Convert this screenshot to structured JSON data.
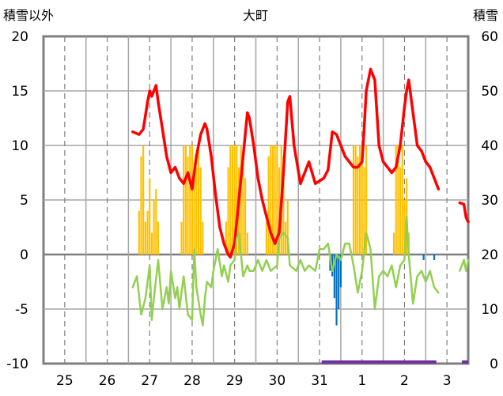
{
  "chart_data": {
    "type": "line",
    "title": "大町",
    "ylabel_left": "積雪以外",
    "ylabel_right": "積雪",
    "ylim_left": [
      -10,
      20
    ],
    "ylim_right": [
      0,
      60
    ],
    "yticks_left": [
      "20",
      "15",
      "10",
      "5",
      "0",
      "-5",
      "-10"
    ],
    "yticks_right": [
      "60",
      "50",
      "40",
      "30",
      "20",
      "10",
      "0"
    ],
    "x_tick_labels": [
      "25",
      "26",
      "27",
      "28",
      "29",
      "30",
      "31",
      "1",
      "2",
      "3"
    ],
    "x_range_days": [
      24.5,
      34.5
    ],
    "grid": true,
    "colors": {
      "snow_depth": "#ff0000",
      "temperature": "#92d050",
      "sunshine": "#ffc000",
      "precipitation": "#0070c0",
      "missing_bar": "#7030a0"
    },
    "series": [
      {
        "key": "snow_depth",
        "axis": "right",
        "style": "line",
        "x": [
          26.6,
          26.75,
          26.85,
          26.95,
          27.0,
          27.05,
          27.15,
          27.2,
          27.3,
          27.4,
          27.5,
          27.6,
          27.7,
          27.8,
          27.9,
          28.0,
          28.1,
          28.2,
          28.3,
          28.35,
          28.45,
          28.55,
          28.65,
          28.75,
          28.85,
          28.9,
          29.0,
          29.1,
          29.2,
          29.3,
          29.35,
          29.45,
          29.55,
          29.65,
          29.75,
          29.85,
          29.95,
          30.05,
          30.15,
          30.25,
          30.3,
          30.4,
          30.55,
          30.65,
          30.75,
          30.9,
          31.0,
          31.1,
          31.2,
          31.3,
          31.4,
          31.5,
          31.6,
          31.7,
          31.8,
          31.9,
          32.0,
          32.05,
          32.1,
          32.2,
          32.3,
          32.4,
          32.5,
          32.6,
          32.7,
          32.8,
          32.9,
          33.0,
          33.05,
          33.1,
          33.2,
          33.3,
          33.4,
          33.5,
          33.6,
          33.7,
          33.8
        ],
        "values": [
          42.5,
          42,
          43,
          48,
          50,
          49,
          51,
          48,
          43,
          38,
          35,
          36,
          34,
          33,
          35,
          32,
          38,
          42,
          44,
          43,
          38,
          31,
          25,
          22,
          20,
          19.5,
          22,
          30,
          38,
          46,
          45,
          40,
          34,
          30,
          27,
          24,
          22,
          24,
          35,
          48,
          49,
          40,
          33,
          35,
          37,
          33,
          33.5,
          34,
          35.5,
          42.5,
          42,
          40,
          38,
          37,
          36,
          36,
          37,
          43,
          50,
          54,
          52,
          40,
          37,
          36,
          35,
          36,
          40,
          47,
          50,
          52,
          46,
          40,
          39,
          37,
          36,
          34,
          32
        ]
      },
      {
        "key": "snow_depth_tail",
        "axis": "right",
        "style": "line",
        "x": [
          34.3,
          34.4,
          34.45,
          34.5
        ],
        "values": [
          29.5,
          29.2,
          26.8,
          26
        ]
      },
      {
        "key": "temperature",
        "axis": "left",
        "style": "line",
        "x": [
          26.6,
          26.7,
          26.8,
          26.9,
          27.0,
          27.05,
          27.1,
          27.2,
          27.3,
          27.4,
          27.45,
          27.5,
          27.6,
          27.65,
          27.7,
          27.8,
          27.9,
          28.0,
          28.05,
          28.1,
          28.2,
          28.25,
          28.3,
          28.35,
          28.45,
          28.5,
          28.6,
          28.7,
          28.75,
          28.85,
          28.9,
          29.0,
          29.05,
          29.1,
          29.2,
          29.3,
          29.35,
          29.45,
          29.55,
          29.65,
          29.75,
          29.85,
          30.0,
          30.05,
          30.15,
          30.25,
          30.3,
          30.45,
          30.55,
          30.65,
          30.75,
          30.9,
          31.0,
          31.1,
          31.2,
          31.3,
          31.4,
          31.5,
          31.6,
          31.7,
          31.8,
          31.9,
          32.0,
          32.1,
          32.2,
          32.3,
          32.4,
          32.5,
          32.6,
          32.7,
          32.8,
          32.9,
          33.0,
          33.05,
          33.1,
          33.2,
          33.3,
          33.4,
          33.5,
          33.6,
          33.7,
          33.8
        ],
        "values": [
          -3,
          -2,
          -5.5,
          -4,
          -1,
          -6,
          -4,
          -0.5,
          -5,
          -3,
          -4.5,
          -1.5,
          -4,
          -3,
          -5,
          -2,
          -5.5,
          -6,
          0.5,
          -3,
          -5.5,
          -6.5,
          -4,
          -2.5,
          -3,
          -1.5,
          0.5,
          -2,
          -1,
          -2.5,
          -1,
          -0.5,
          1.5,
          2,
          -2,
          -1,
          -1.5,
          -1.5,
          -0.5,
          -1.5,
          -0.5,
          -1.5,
          -1,
          1.5,
          2,
          1.5,
          -1,
          -1.5,
          -0.5,
          -1.5,
          -1,
          -1.5,
          0.5,
          0.5,
          1,
          -1.5,
          0,
          -0.5,
          1,
          1,
          -1,
          -3.5,
          -1.5,
          2,
          0.5,
          -5,
          -2,
          -1.5,
          -2,
          -1,
          -3,
          -1,
          -0.5,
          3.5,
          0,
          -4.5,
          -2,
          -1.5,
          -2.5,
          -1.5,
          -3,
          -3.5
        ]
      },
      {
        "key": "temperature_tail",
        "axis": "left",
        "style": "line",
        "x": [
          34.3,
          34.4,
          34.45,
          34.5
        ],
        "values": [
          -1.5,
          -0.5,
          -1.5,
          -0.5
        ]
      },
      {
        "key": "sunshine",
        "axis": "left",
        "style": "bars",
        "bar_width_days": 0.04,
        "x": [
          26.75,
          26.8,
          26.85,
          26.9,
          26.95,
          27.0,
          27.05,
          27.1,
          27.15,
          27.2,
          27.75,
          27.8,
          27.85,
          27.9,
          27.95,
          28.0,
          28.05,
          28.1,
          28.15,
          28.2,
          28.25,
          28.8,
          28.85,
          28.9,
          28.95,
          29.0,
          29.05,
          29.1,
          29.15,
          29.2,
          29.25,
          29.3,
          29.75,
          29.8,
          29.85,
          29.9,
          29.95,
          30.0,
          30.05,
          30.1,
          30.15,
          30.2,
          30.25,
          31.8,
          31.85,
          31.9,
          31.95,
          32.0,
          32.05,
          32.1,
          32.75,
          32.8,
          32.85,
          32.9,
          32.95,
          33.0,
          33.05,
          33.1
        ],
        "values": [
          4,
          9,
          10,
          3,
          4,
          7,
          2,
          5,
          6,
          3,
          3,
          10,
          10,
          9,
          10,
          10,
          7,
          8,
          10,
          8,
          3,
          3,
          8,
          10,
          10,
          10,
          10,
          8,
          10,
          9,
          7,
          2,
          3,
          9,
          10,
          10,
          10,
          10,
          8,
          10,
          9,
          3,
          5,
          10,
          10,
          9,
          10,
          10,
          8,
          10,
          2,
          10,
          10,
          8,
          10,
          5,
          7,
          2
        ]
      },
      {
        "key": "precipitation",
        "axis": "left",
        "style": "bars",
        "bar_width_days": 0.04,
        "x": [
          31.25,
          31.3,
          31.35,
          31.4,
          31.45,
          31.5,
          33.45,
          33.7
        ],
        "values": [
          -1.5,
          -2,
          -4,
          -6.5,
          -5,
          -3,
          -0.5,
          -0.5
        ]
      },
      {
        "key": "missing_bar",
        "axis": "left",
        "style": "band",
        "x": [
          31.05,
          33.75,
          34.35,
          34.5
        ],
        "values": [
          -10,
          -10,
          -10,
          -10
        ]
      }
    ]
  }
}
